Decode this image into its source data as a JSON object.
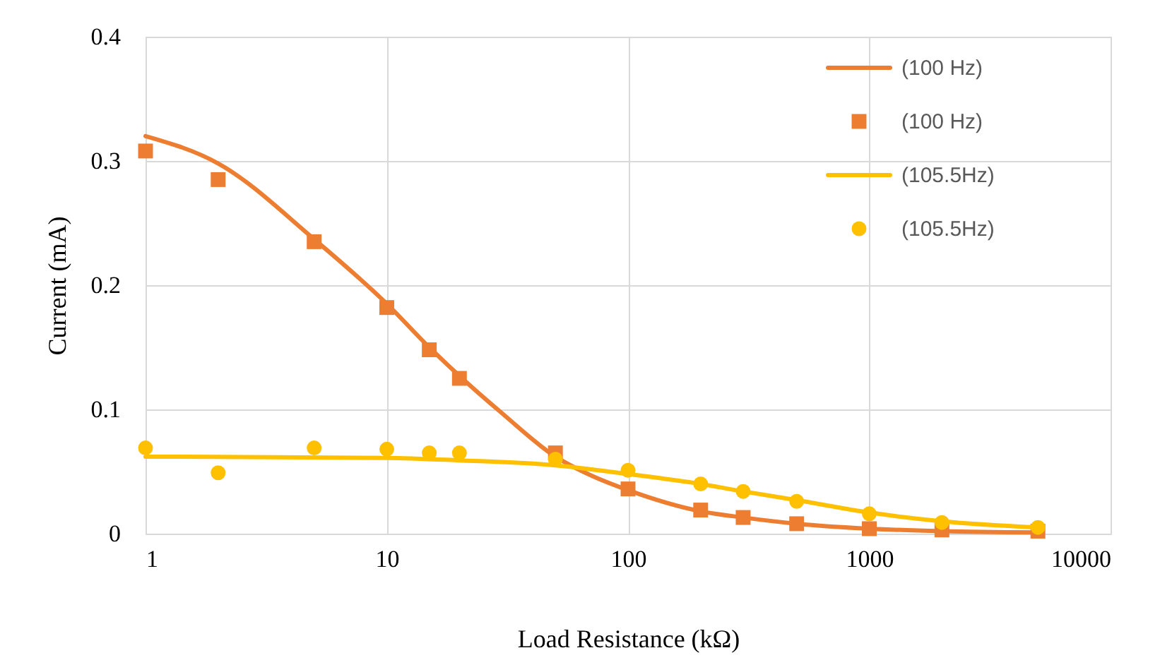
{
  "chart_data": {
    "type": "line",
    "xlabel": "Load Resistance (kΩ)",
    "ylabel": "Current (mA)",
    "log": "x",
    "grid": true,
    "legend": "top right",
    "xlim": [
      1,
      10000
    ],
    "xticks": [
      1,
      10,
      100,
      1000,
      10000
    ],
    "ylim": [
      0,
      0.4
    ],
    "yticks": [
      0,
      0.1,
      0.2,
      0.3,
      0.4
    ],
    "series": [
      {
        "name": "(100 Hz)",
        "marker": "none",
        "color": "#ed7d31",
        "x": [
          1,
          2,
          5,
          10,
          15,
          20,
          30,
          50,
          70,
          100,
          200,
          300,
          500,
          1000,
          2000,
          5000
        ],
        "values": [
          0.32,
          0.298,
          0.237,
          0.185,
          0.15,
          0.127,
          0.097,
          0.062,
          0.047,
          0.035,
          0.018,
          0.013,
          0.008,
          0.004,
          0.002,
          0.001
        ]
      },
      {
        "name": "(100 Hz)",
        "type": "scatter",
        "marker": "square",
        "color": "#ed7d31",
        "x": [
          1,
          2,
          5,
          10,
          15,
          20,
          50,
          100,
          200,
          300,
          500,
          1000,
          2000,
          5000
        ],
        "values": [
          0.308,
          0.285,
          0.235,
          0.182,
          0.148,
          0.125,
          0.065,
          0.036,
          0.019,
          0.013,
          0.008,
          0.004,
          0.003,
          0.002
        ]
      },
      {
        "name": "(105.5Hz)",
        "marker": "none",
        "color": "#ffc000",
        "x": [
          1,
          10,
          20,
          50,
          100,
          200,
          300,
          500,
          1000,
          2000,
          5000
        ],
        "values": [
          0.062,
          0.061,
          0.059,
          0.055,
          0.048,
          0.04,
          0.034,
          0.027,
          0.017,
          0.01,
          0.005
        ]
      },
      {
        "name": "(105.5Hz)",
        "type": "scatter",
        "marker": "circle",
        "color": "#ffc000",
        "x": [
          1,
          2,
          5,
          10,
          15,
          20,
          50,
          100,
          200,
          300,
          500,
          1000,
          2000,
          5000
        ],
        "values": [
          0.069,
          0.049,
          0.069,
          0.068,
          0.065,
          0.065,
          0.06,
          0.051,
          0.04,
          0.034,
          0.026,
          0.016,
          0.009,
          0.005
        ]
      }
    ]
  }
}
